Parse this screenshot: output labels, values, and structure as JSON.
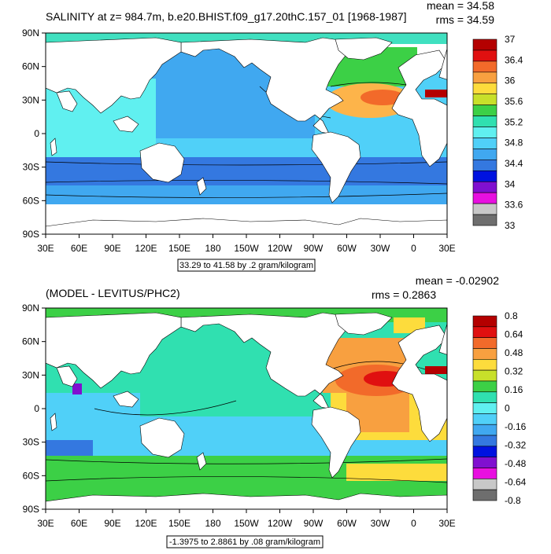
{
  "panel1": {
    "title": "SALINITY at z= 984.7m, b.e20.BHIST.f09_g17.20thC.157_01 [1968-1987]",
    "mean": "mean = 34.58",
    "rms": "rms = 34.59",
    "range_info": "33.29 to 41.58 by .2 gram/kilogram",
    "colorbar": {
      "labels": [
        "37",
        "36.4",
        "36",
        "35.6",
        "35.2",
        "34.8",
        "34.4",
        "34",
        "33.6",
        "33"
      ],
      "colors": [
        "#b40000",
        "#e01010",
        "#f26a2a",
        "#f8a040",
        "#fddc3c",
        "#c8e02a",
        "#3cd046",
        "#30e0b0",
        "#60f0f0",
        "#50d0f8",
        "#40a8f0",
        "#3478e0",
        "#0012e0",
        "#8010d0",
        "#e810e0",
        "#c8c8c8",
        "#6e6e6e"
      ]
    },
    "regions": [
      {
        "name": "arctic",
        "color": "#40e0c0"
      },
      {
        "name": "pacific-north",
        "color": "#40a8f0"
      },
      {
        "name": "pacific-south",
        "color": "#50d0f8"
      },
      {
        "name": "southern-ocean",
        "color": "#3478e0"
      },
      {
        "name": "indian",
        "color": "#60f0f0"
      },
      {
        "name": "atlantic-north",
        "color": "#fdb44a"
      },
      {
        "name": "atlantic-south",
        "color": "#50d0f8"
      },
      {
        "name": "mediterranean",
        "color": "#b40000"
      }
    ]
  },
  "panel2": {
    "title": "(MODEL - LEVITUS/PHC2)",
    "mean": "mean = -0.02902",
    "rms": "rms = 0.2863",
    "range_info": "-1.3975 to 2.8861 by .08 gram/kilogram",
    "colorbar": {
      "labels": [
        "0.8",
        "0.64",
        "0.48",
        "0.32",
        "0.16",
        "0",
        "-0.16",
        "-0.32",
        "-0.48",
        "-0.64",
        "-0.8"
      ],
      "colors": [
        "#b40000",
        "#e01010",
        "#f26a2a",
        "#f8a040",
        "#fddc3c",
        "#c8e02a",
        "#3cd046",
        "#30e0b0",
        "#60f0f0",
        "#50d0f8",
        "#40a8f0",
        "#3478e0",
        "#0012e0",
        "#8010d0",
        "#e810e0",
        "#c8c8c8",
        "#6e6e6e"
      ]
    },
    "regions": [
      {
        "name": "arctic",
        "color": "#3cd046"
      },
      {
        "name": "pacific-north",
        "color": "#30e0b0"
      },
      {
        "name": "pacific-south",
        "color": "#50d0f8"
      },
      {
        "name": "southern-ocean",
        "color": "#3cd046"
      },
      {
        "name": "indian",
        "color": "#50d0f8"
      },
      {
        "name": "atlantic-north",
        "color": "#f8a040"
      },
      {
        "name": "atlantic-south",
        "color": "#fddc3c"
      },
      {
        "name": "mediterranean",
        "color": "#b40000"
      }
    ]
  },
  "axes": {
    "lat_labels": [
      "90N",
      "60N",
      "30N",
      "0",
      "30S",
      "60S",
      "90S"
    ],
    "lon_labels": [
      "30E",
      "60E",
      "90E",
      "120E",
      "150E",
      "180",
      "150W",
      "120W",
      "90W",
      "60W",
      "30W",
      "0",
      "30E"
    ]
  }
}
